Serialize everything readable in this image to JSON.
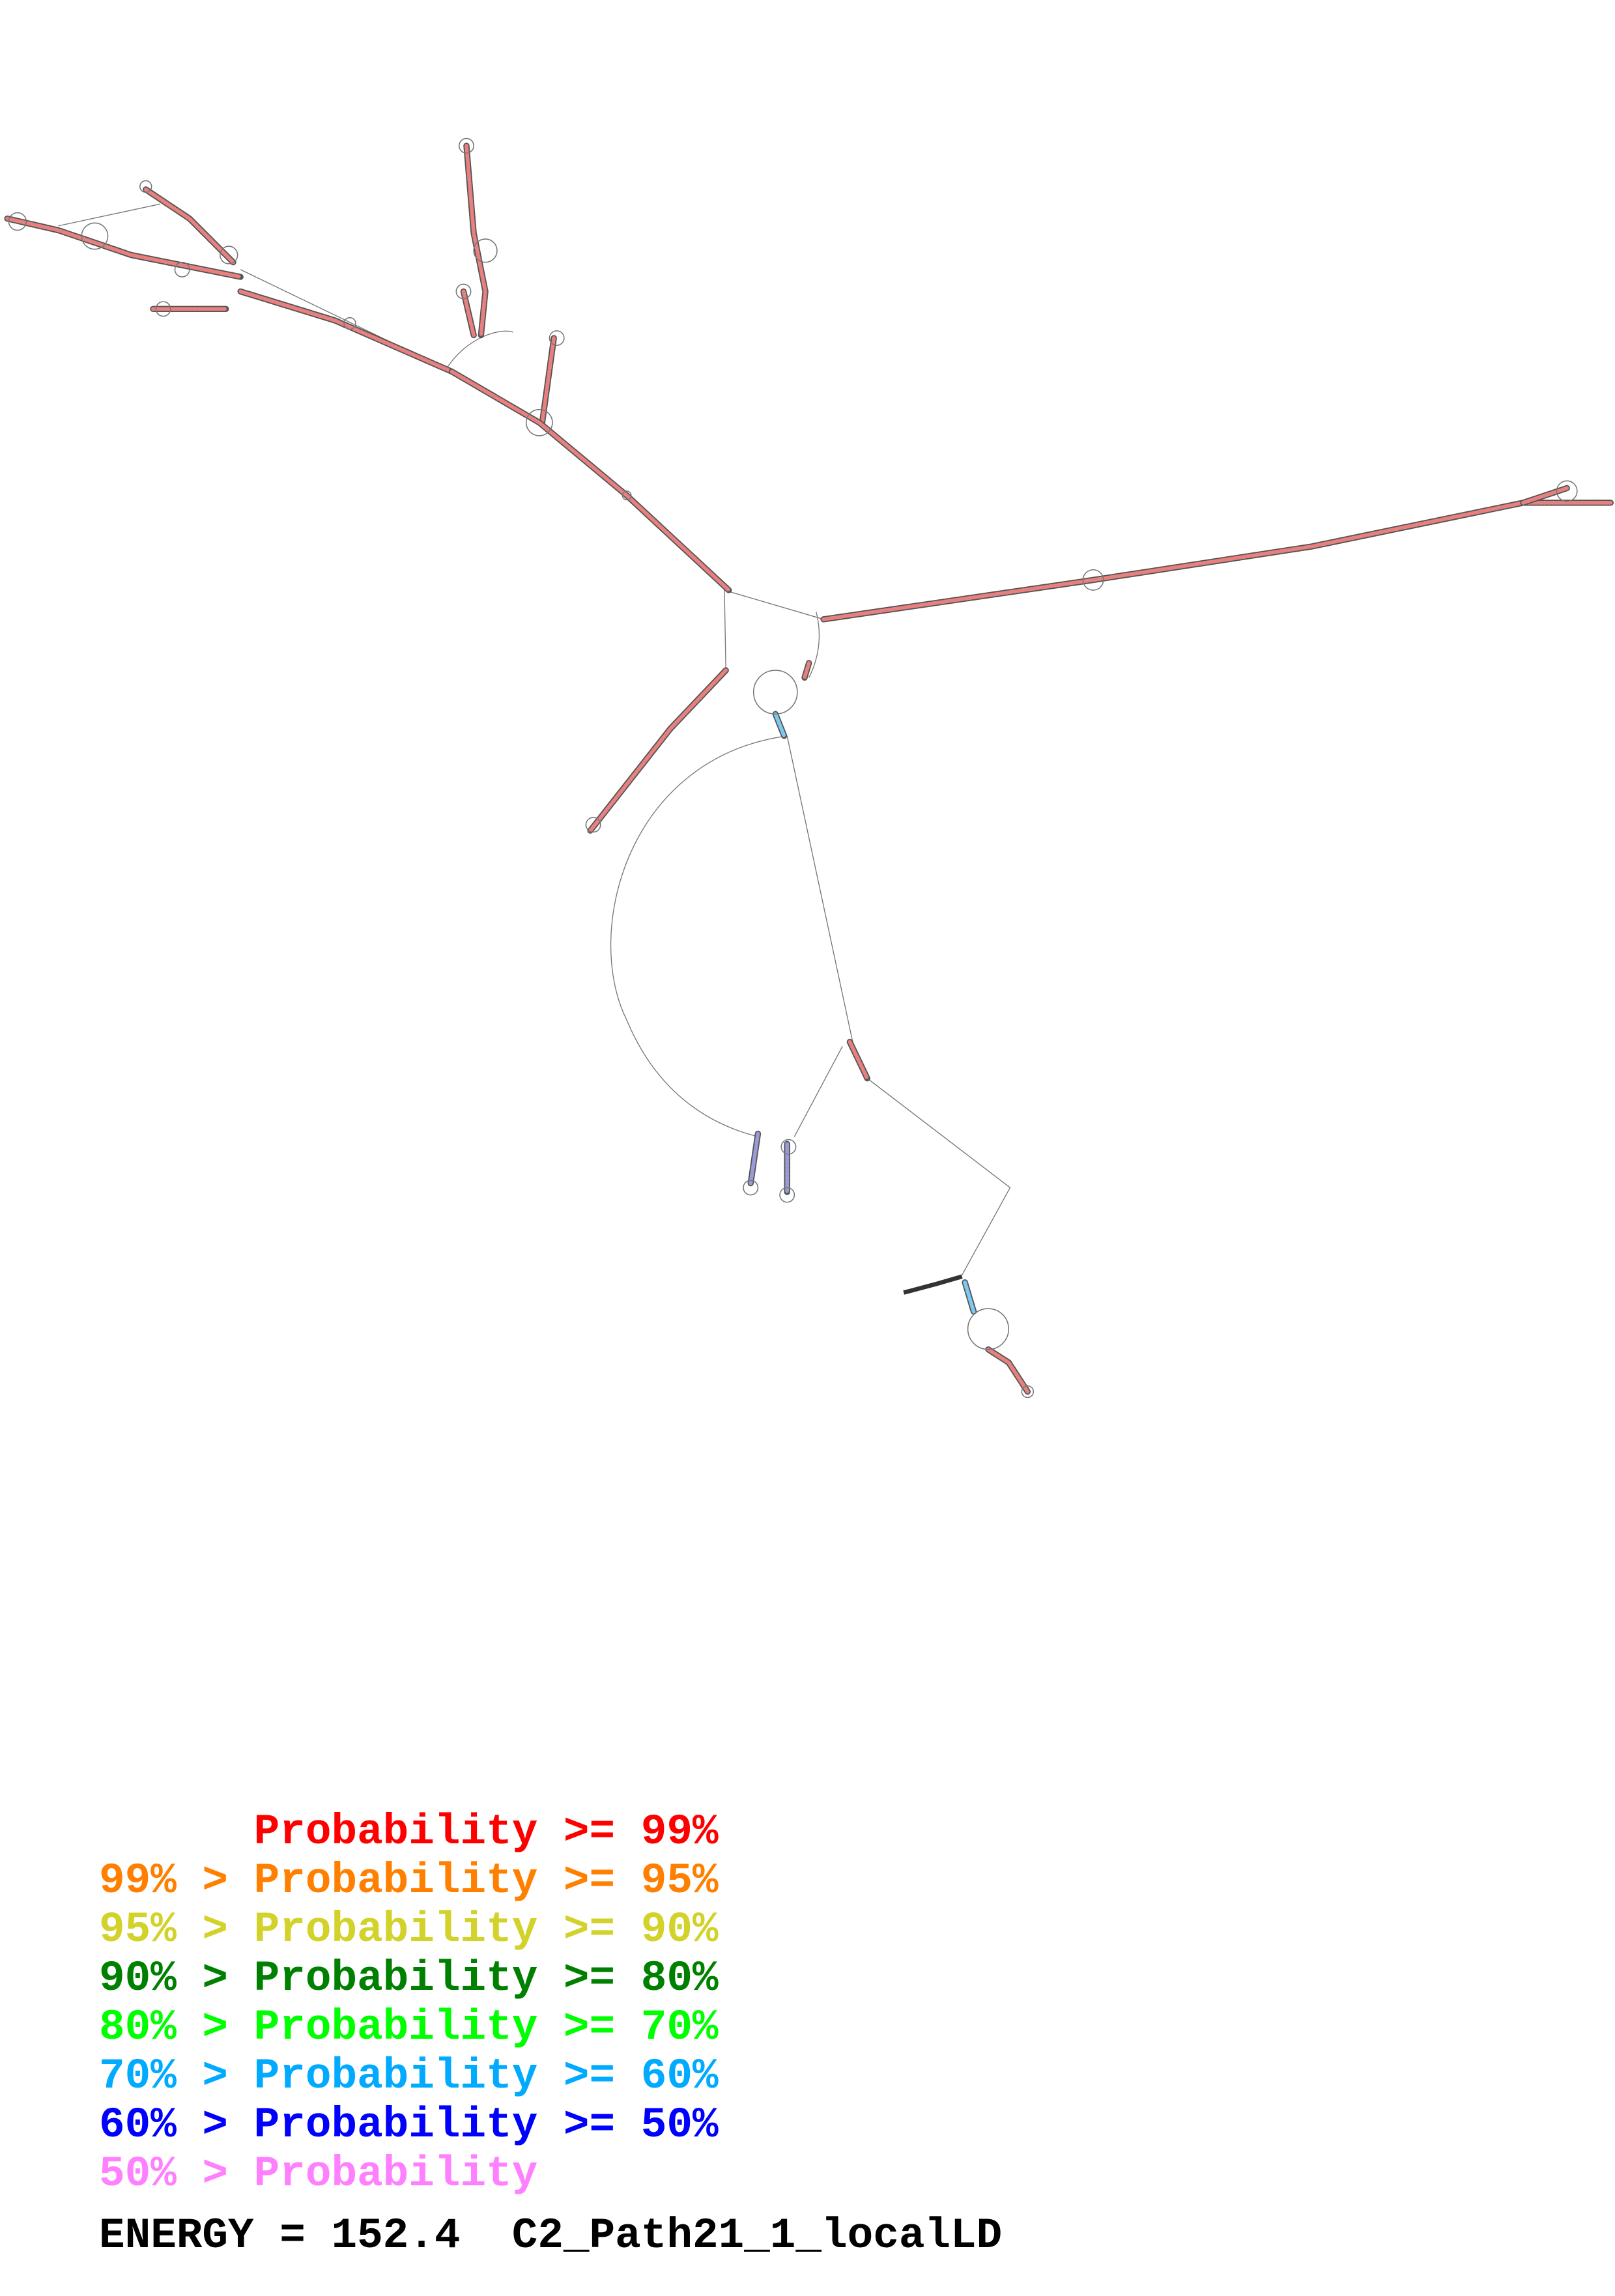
{
  "legend": [
    {
      "prefix": "      ",
      "text": "Probability >= 99%",
      "color": "#ff0000"
    },
    {
      "prefix": "",
      "text": "99% > Probability >= 95%",
      "color": "#ff8000"
    },
    {
      "prefix": "",
      "text": "95% > Probability >= 90%",
      "color": "#d2d22a"
    },
    {
      "prefix": "",
      "text": "90% > Probability >= 80%",
      "color": "#008000"
    },
    {
      "prefix": "",
      "text": "80% > Probability >= 70%",
      "color": "#00ff00"
    },
    {
      "prefix": "",
      "text": "70% > Probability >= 60%",
      "color": "#00aaff"
    },
    {
      "prefix": "",
      "text": "60% > Probability >= 50%",
      "color": "#0000ff"
    },
    {
      "prefix": "",
      "text": "50% > Probability",
      "color": "#ff80ff"
    }
  ],
  "footer": {
    "energy": "ENERGY = 152.4",
    "name": "C2_Path21_1_localLD"
  }
}
